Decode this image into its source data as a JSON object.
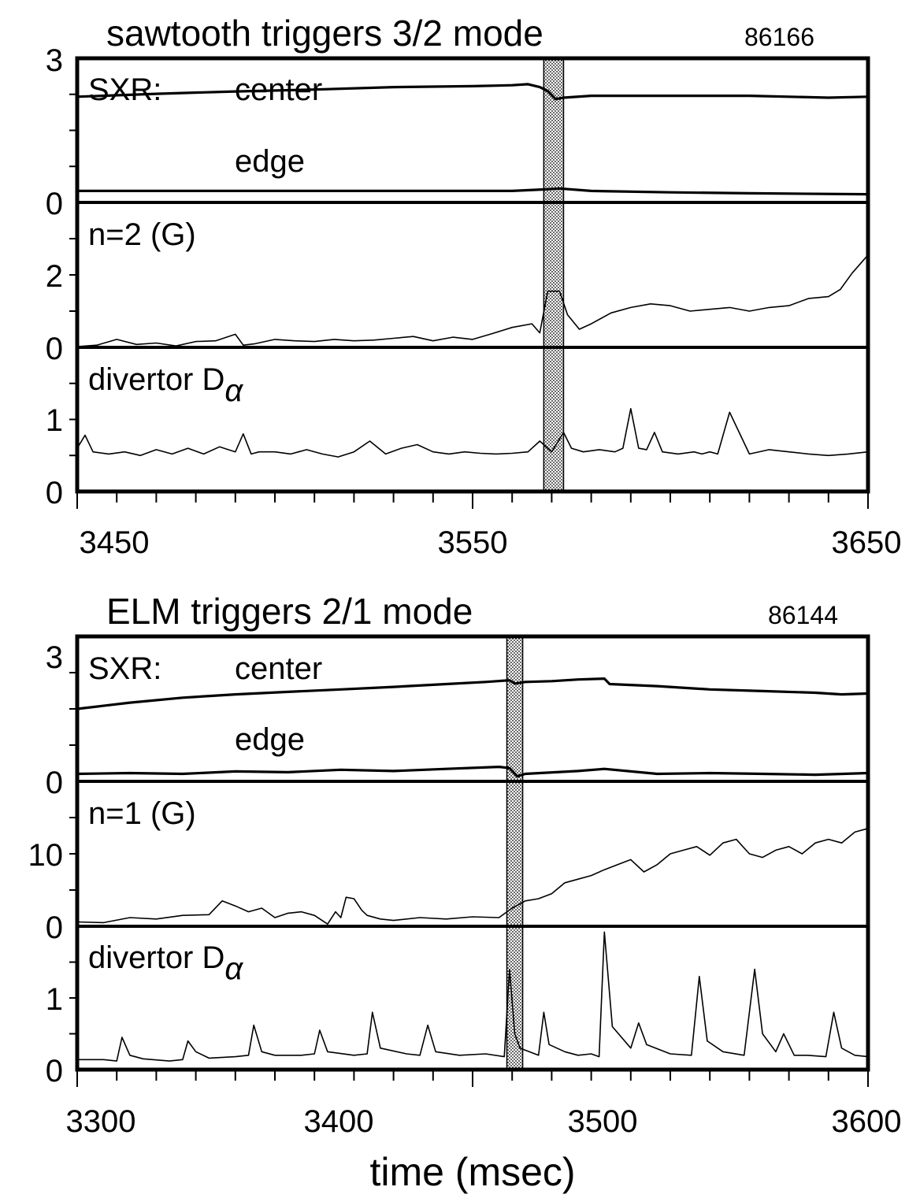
{
  "chart_data": [
    {
      "type": "line",
      "title": "sawtooth triggers 3/2 mode",
      "shot": "86166",
      "xlabel": "",
      "x_ticks": [
        "3450",
        "3550",
        "3650"
      ],
      "xlim": [
        3450,
        3650
      ],
      "highlight_band": [
        3568,
        3573
      ],
      "panels": [
        {
          "label": "SXR:",
          "ylim": [
            0,
            3
          ],
          "y_ticks": [
            "3",
            "0"
          ],
          "series": [
            {
              "name": "center",
              "weight": "thick",
              "x": [
                3450,
                3470,
                3490,
                3510,
                3530,
                3550,
                3560,
                3564,
                3567,
                3569,
                3571,
                3573,
                3580,
                3600,
                3620,
                3640,
                3650
              ],
              "y": [
                2.2,
                2.26,
                2.31,
                2.35,
                2.4,
                2.42,
                2.44,
                2.46,
                2.4,
                2.32,
                2.15,
                2.18,
                2.22,
                2.22,
                2.22,
                2.18,
                2.2
              ]
            },
            {
              "name": "edge",
              "weight": "thick",
              "x": [
                3450,
                3480,
                3520,
                3560,
                3568,
                3572,
                3580,
                3600,
                3620,
                3650
              ],
              "y": [
                0.24,
                0.24,
                0.24,
                0.24,
                0.27,
                0.29,
                0.24,
                0.21,
                0.19,
                0.17
              ]
            }
          ]
        },
        {
          "label": "n=2 (G)",
          "ylim": [
            0,
            4
          ],
          "y_ticks": [
            "2",
            "0"
          ],
          "series": [
            {
              "name": "",
              "weight": "thin",
              "x": [
                3450,
                3455,
                3460,
                3465,
                3470,
                3475,
                3480,
                3485,
                3490,
                3492,
                3495,
                3500,
                3505,
                3510,
                3515,
                3520,
                3525,
                3530,
                3535,
                3540,
                3545,
                3550,
                3555,
                3560,
                3565,
                3567,
                3569,
                3572,
                3574,
                3577,
                3580,
                3585,
                3590,
                3595,
                3600,
                3605,
                3610,
                3615,
                3620,
                3625,
                3630,
                3635,
                3640,
                3643,
                3646,
                3650
              ],
              "y": [
                0.02,
                0.06,
                0.22,
                0.08,
                0.12,
                0.04,
                0.16,
                0.18,
                0.36,
                0.06,
                0.1,
                0.22,
                0.18,
                0.16,
                0.22,
                0.18,
                0.2,
                0.25,
                0.3,
                0.18,
                0.28,
                0.22,
                0.38,
                0.55,
                0.65,
                0.4,
                1.55,
                1.55,
                0.9,
                0.5,
                0.65,
                0.95,
                1.1,
                1.2,
                1.15,
                1.0,
                1.05,
                1.1,
                1.0,
                1.1,
                1.15,
                1.35,
                1.4,
                1.6,
                2.05,
                2.55
              ]
            }
          ]
        },
        {
          "label": "divertor D",
          "label_subscript": "α",
          "ylim": [
            0,
            2
          ],
          "y_ticks": [
            "1",
            "0"
          ],
          "series": [
            {
              "name": "",
              "weight": "thin",
              "x": [
                3450,
                3452,
                3454,
                3458,
                3462,
                3466,
                3470,
                3474,
                3478,
                3482,
                3486,
                3490,
                3492,
                3494,
                3496,
                3500,
                3504,
                3508,
                3512,
                3516,
                3520,
                3524,
                3528,
                3532,
                3536,
                3540,
                3544,
                3548,
                3552,
                3556,
                3560,
                3564,
                3567,
                3570,
                3573,
                3575,
                3578,
                3582,
                3586,
                3588,
                3590,
                3592,
                3594,
                3596,
                3598,
                3602,
                3606,
                3608,
                3610,
                3612,
                3615,
                3620,
                3625,
                3630,
                3635,
                3640,
                3645,
                3650
              ],
              "y": [
                0.6,
                0.78,
                0.55,
                0.52,
                0.55,
                0.5,
                0.58,
                0.52,
                0.6,
                0.52,
                0.62,
                0.55,
                0.8,
                0.52,
                0.55,
                0.55,
                0.52,
                0.58,
                0.52,
                0.48,
                0.55,
                0.7,
                0.52,
                0.6,
                0.65,
                0.55,
                0.52,
                0.55,
                0.53,
                0.52,
                0.53,
                0.55,
                0.7,
                0.55,
                0.82,
                0.6,
                0.55,
                0.58,
                0.55,
                0.6,
                1.15,
                0.6,
                0.58,
                0.82,
                0.55,
                0.52,
                0.55,
                0.52,
                0.55,
                0.52,
                1.1,
                0.52,
                0.58,
                0.55,
                0.52,
                0.5,
                0.52,
                0.55
              ]
            }
          ]
        }
      ]
    },
    {
      "type": "line",
      "title": "ELM triggers 2/1 mode",
      "shot": "86144",
      "xlabel": "time (msec)",
      "x_ticks": [
        "3300",
        "3400",
        "3500",
        "3600"
      ],
      "xlim": [
        3300,
        3600
      ],
      "highlight_band": [
        3463,
        3469
      ],
      "panels": [
        {
          "label": "SXR:",
          "ylim": [
            0,
            3.5
          ],
          "y_ticks": [
            "3",
            "0"
          ],
          "series": [
            {
              "name": "center",
              "weight": "thick",
              "x": [
                3300,
                3320,
                3340,
                3360,
                3380,
                3400,
                3420,
                3440,
                3455,
                3464,
                3466,
                3470,
                3480,
                3490,
                3500,
                3502,
                3520,
                3540,
                3560,
                3580,
                3590,
                3600
              ],
              "y": [
                1.75,
                1.9,
                2.02,
                2.1,
                2.16,
                2.22,
                2.28,
                2.35,
                2.4,
                2.44,
                2.36,
                2.4,
                2.42,
                2.46,
                2.48,
                2.35,
                2.3,
                2.22,
                2.18,
                2.14,
                2.1,
                2.12
              ]
            },
            {
              "name": "edge",
              "weight": "thick",
              "x": [
                3300,
                3320,
                3340,
                3360,
                3380,
                3400,
                3420,
                3440,
                3460,
                3464,
                3467,
                3470,
                3490,
                3500,
                3520,
                3540,
                3560,
                3580,
                3600
              ],
              "y": [
                0.18,
                0.2,
                0.18,
                0.24,
                0.22,
                0.28,
                0.25,
                0.3,
                0.35,
                0.32,
                0.12,
                0.18,
                0.25,
                0.3,
                0.18,
                0.2,
                0.18,
                0.16,
                0.2
              ]
            }
          ]
        },
        {
          "label": "n=1 (G)",
          "ylim": [
            0,
            20
          ],
          "y_ticks": [
            "10",
            "0"
          ],
          "series": [
            {
              "name": "",
              "weight": "thin",
              "x": [
                3300,
                3310,
                3320,
                3330,
                3340,
                3350,
                3355,
                3360,
                3365,
                3370,
                3375,
                3380,
                3385,
                3390,
                3395,
                3398,
                3400,
                3402,
                3405,
                3408,
                3410,
                3415,
                3420,
                3430,
                3440,
                3450,
                3460,
                3465,
                3470,
                3475,
                3480,
                3485,
                3490,
                3495,
                3500,
                3505,
                3510,
                3515,
                3520,
                3525,
                3530,
                3535,
                3540,
                3545,
                3550,
                3555,
                3560,
                3565,
                3570,
                3575,
                3580,
                3585,
                3590,
                3595,
                3600
              ],
              "y": [
                0.6,
                0.5,
                1.2,
                1.0,
                1.5,
                1.6,
                3.5,
                2.8,
                2.0,
                2.5,
                1.2,
                1.8,
                2.0,
                1.5,
                0.3,
                2.0,
                1.2,
                4.0,
                3.8,
                2.2,
                1.5,
                1.0,
                0.8,
                1.2,
                1.0,
                1.3,
                1.2,
                2.5,
                3.5,
                3.8,
                4.5,
                6.0,
                6.5,
                7.0,
                7.8,
                8.5,
                9.2,
                7.5,
                8.5,
                10.0,
                10.5,
                11.0,
                9.8,
                11.5,
                12.0,
                10.0,
                9.5,
                10.5,
                11.0,
                10.0,
                11.5,
                12.0,
                11.5,
                13.0,
                13.5
              ]
            }
          ]
        },
        {
          "label": "divertor D",
          "label_subscript": "α",
          "ylim": [
            0,
            2
          ],
          "y_ticks": [
            "1",
            "0"
          ],
          "series": [
            {
              "name": "",
              "weight": "thin",
              "x": [
                3300,
                3310,
                3315,
                3317,
                3320,
                3325,
                3335,
                3340,
                3342,
                3345,
                3350,
                3360,
                3365,
                3367,
                3370,
                3375,
                3385,
                3390,
                3392,
                3395,
                3405,
                3410,
                3412,
                3415,
                3425,
                3430,
                3433,
                3436,
                3445,
                3455,
                3462,
                3464,
                3466,
                3468,
                3475,
                3477,
                3479,
                3485,
                3490,
                3495,
                3498,
                3500,
                3503,
                3510,
                3513,
                3516,
                3525,
                3533,
                3536,
                3539,
                3545,
                3553,
                3557,
                3560,
                3565,
                3568,
                3572,
                3577,
                3584,
                3587,
                3590,
                3595,
                3600
              ],
              "y": [
                0.14,
                0.14,
                0.12,
                0.45,
                0.2,
                0.15,
                0.12,
                0.14,
                0.4,
                0.25,
                0.16,
                0.18,
                0.2,
                0.62,
                0.25,
                0.2,
                0.2,
                0.22,
                0.55,
                0.25,
                0.2,
                0.22,
                0.8,
                0.3,
                0.22,
                0.2,
                0.62,
                0.25,
                0.2,
                0.22,
                0.18,
                1.4,
                0.5,
                0.3,
                0.2,
                0.8,
                0.35,
                0.25,
                0.2,
                0.22,
                0.18,
                1.92,
                0.6,
                0.3,
                0.65,
                0.35,
                0.22,
                0.2,
                1.3,
                0.4,
                0.25,
                0.2,
                1.4,
                0.5,
                0.25,
                0.5,
                0.2,
                0.2,
                0.18,
                0.8,
                0.3,
                0.2,
                0.18
              ]
            }
          ]
        }
      ]
    }
  ]
}
